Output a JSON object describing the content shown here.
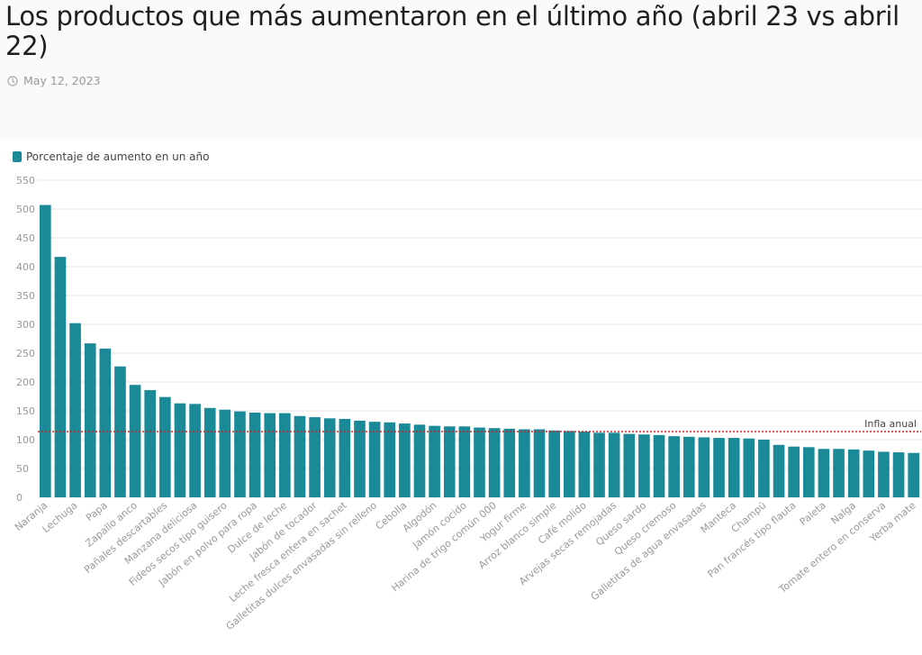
{
  "header": {
    "title": "Los productos que más aumentaron en el último año (abril 23 vs abril 22)",
    "date": "May 12, 2023",
    "date_icon": "clock-icon"
  },
  "colors": {
    "bar": "#1b8a98",
    "reference_line": "#cc2222",
    "grid": "#e3e3e3",
    "tick_text": "#999999"
  },
  "chart_data": {
    "type": "bar",
    "title": "",
    "xlabel": "",
    "ylabel": "",
    "ylim": [
      0,
      550
    ],
    "yticks": [
      0,
      50,
      100,
      150,
      200,
      250,
      300,
      350,
      400,
      450,
      500,
      550
    ],
    "grid": true,
    "legend_position": "top-left",
    "categories": [
      "Naranja",
      "",
      "Lechuga",
      "",
      "Papa",
      "",
      "Zapallo anco",
      "",
      "Pañales descartables",
      "",
      "Manzana deliciosa",
      "",
      "Fideos secos tipo guisero",
      "",
      "Jabón en polvo para ropa",
      "",
      "Dulce de leche",
      "",
      "Jabón de tocador",
      "",
      "Leche fresca entera en sachet",
      "",
      "Galletitas dulces envasadas sin relleno",
      "",
      "Cebolla",
      "",
      "Algodón",
      "",
      "Jamón cocido",
      "",
      "Harina de trigo común 000",
      "",
      "Yogur firme",
      "",
      "Arroz blanco simple",
      "",
      "Café molido",
      "",
      "Arvejas secas remojadas",
      "",
      "Queso sardo",
      "",
      "Queso cremoso",
      "",
      "Galletitas de agua envasadas",
      "",
      "Manteca",
      "",
      "Champú",
      "",
      "Pan francés tipo flauta",
      "",
      "Paleta",
      "",
      "Nalga",
      "",
      "Tomate entero en conserva",
      "",
      "Yerba mate"
    ],
    "series": [
      {
        "name": "Porcentaje de aumento en un año",
        "values": [
          507,
          417,
          302,
          267,
          258,
          227,
          195,
          186,
          174,
          163,
          162,
          155,
          152,
          149,
          147,
          146,
          146,
          141,
          139,
          137,
          136,
          133,
          131,
          130,
          128,
          126,
          124,
          123,
          123,
          121,
          120,
          119,
          118,
          118,
          116,
          115,
          114,
          112,
          112,
          110,
          109,
          108,
          106,
          105,
          104,
          103,
          103,
          102,
          100,
          91,
          88,
          87,
          84,
          84,
          83,
          81,
          79,
          78,
          77
        ]
      }
    ],
    "reference_lines": [
      {
        "label": "Infla anual",
        "value": 114
      }
    ]
  }
}
